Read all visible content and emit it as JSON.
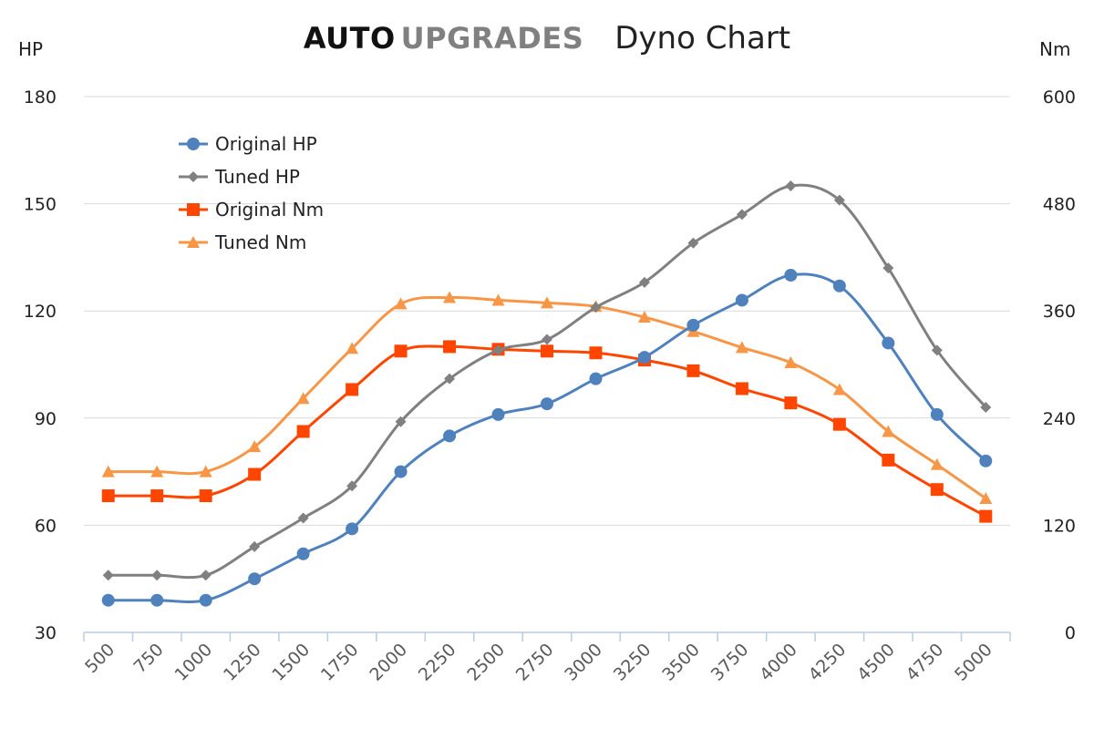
{
  "header": {
    "brand_part1": "AUTO",
    "brand_part2": "UPGRADES",
    "title": "Dyno Chart"
  },
  "chart_data": {
    "type": "line",
    "title": "Dyno Chart",
    "y_left_label": "HP",
    "y_right_label": "Nm",
    "x_ticks": [
      "500",
      "750",
      "1000",
      "1250",
      "1500",
      "1750",
      "2000",
      "2250",
      "2500",
      "2750",
      "3000",
      "3250",
      "3500",
      "3750",
      "4000",
      "4250",
      "4500",
      "4750",
      "5000"
    ],
    "y_left_ticks": [
      "180",
      "150",
      "120",
      "90",
      "60",
      "30"
    ],
    "y_right_ticks": [
      "600",
      "480",
      "360",
      "240",
      "120",
      "0"
    ],
    "y_left_range": [
      30,
      180
    ],
    "y_right_range": [
      0,
      600
    ],
    "grid": true,
    "legend_position": "top-left",
    "series": [
      {
        "name": "Original HP",
        "axis": "left",
        "marker": "circle",
        "color": "#4f81bd",
        "values": [
          39,
          39,
          39,
          45,
          52,
          59,
          75,
          85,
          91,
          94,
          101,
          107,
          116,
          123,
          130,
          127,
          111,
          91,
          78
        ]
      },
      {
        "name": "Tuned HP",
        "axis": "left",
        "marker": "diamond",
        "color": "#808080",
        "values": [
          46,
          46,
          46,
          54,
          62,
          71,
          89,
          101,
          109,
          112,
          121,
          128,
          139,
          147,
          155,
          151,
          132,
          109,
          93
        ]
      },
      {
        "name": "Original Nm",
        "axis": "right",
        "marker": "square",
        "color": "#ff4500",
        "values": [
          153,
          153,
          153,
          177,
          225,
          272,
          315,
          320,
          317,
          315,
          313,
          305,
          293,
          273,
          257,
          233,
          193,
          160,
          130
        ]
      },
      {
        "name": "Tuned Nm",
        "axis": "right",
        "marker": "triangle",
        "color": "#f79646",
        "values": [
          180,
          180,
          180,
          208,
          262,
          318,
          368,
          375,
          372,
          369,
          365,
          353,
          337,
          319,
          302,
          272,
          225,
          188,
          150
        ]
      }
    ]
  }
}
